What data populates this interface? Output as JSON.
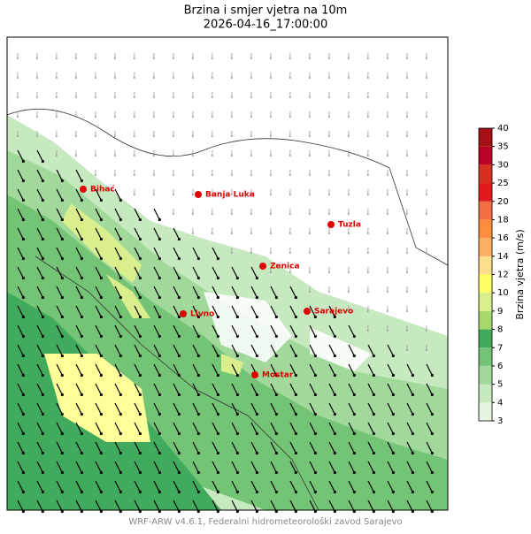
{
  "title": "Brzina i smjer vjetra na 10m",
  "subtitle": "2026-04-16_17:00:00",
  "cities": [
    {
      "name": "Bihać"
    },
    {
      "name": "Banja Luka"
    },
    {
      "name": "Tuzla"
    },
    {
      "name": "Zenica"
    },
    {
      "name": "Livno"
    },
    {
      "name": "Sarajevo"
    },
    {
      "name": "Mostar"
    }
  ],
  "colorbar": {
    "label": "Brzina vjetra (m/s)",
    "ticks": [
      3,
      4,
      5,
      6,
      7,
      8,
      9,
      10,
      12,
      14,
      16,
      18,
      20,
      25,
      30,
      35,
      40
    ],
    "colors": [
      "#e5f5e0",
      "#c7e9c0",
      "#a1d99b",
      "#74c476",
      "#41ab5d",
      "#a6d96a",
      "#d9ef8b",
      "#ffff66",
      "#fee08b",
      "#fdae61",
      "#fd8d3c",
      "#f46d43",
      "#e31a1c",
      "#d7301f",
      "#bd0026",
      "#a50f15"
    ]
  },
  "footer": "WRF-ARW v4.6.1, Federalni hidrometeorološki zavod Sarajevo"
}
